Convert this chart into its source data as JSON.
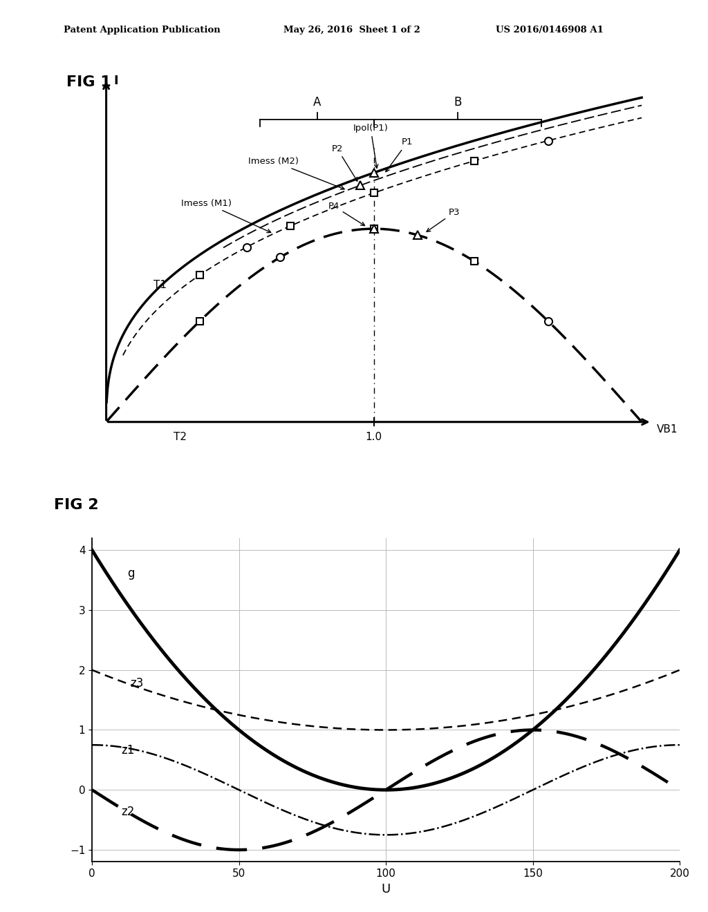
{
  "fig1_title": "FIG 1",
  "fig2_title": "FIG 2",
  "header_left": "Patent Application Publication",
  "header_center": "May 26, 2016  Sheet 1 of 2",
  "header_right": "US 2016/0146908 A1",
  "fig2_xlabel": "U",
  "fig2_xlim": [
    0,
    200
  ],
  "fig2_ylim": [
    -1.2,
    4.2
  ],
  "fig2_yticks": [
    -1,
    0,
    1,
    2,
    3,
    4
  ],
  "fig2_xticks": [
    0,
    50,
    100,
    150,
    200
  ],
  "background_color": "#ffffff"
}
